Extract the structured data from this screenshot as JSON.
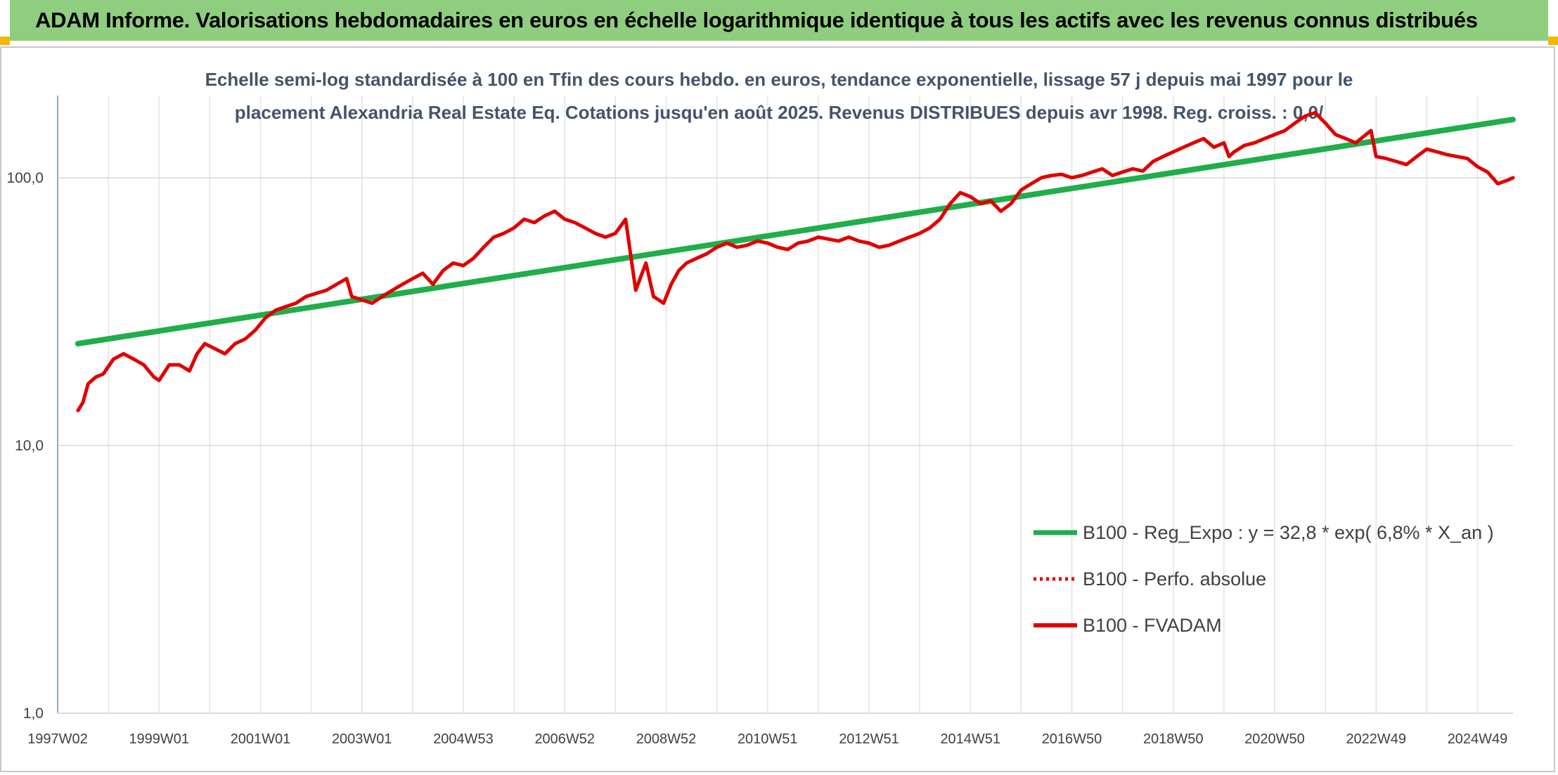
{
  "header": {
    "title": "ADAM Informe. Valorisations hebdomadaires en euros en échelle logarithmique identique à tous les actifs avec les revenus connus distribués"
  },
  "colors": {
    "header_bg": "#8fce7f",
    "accent": "#f2b800",
    "trend": "#1fae4b",
    "perf": "#e00000",
    "grid": "#d9d9d9"
  },
  "chart_data": {
    "type": "line",
    "title_lines": [
      "Echelle semi-log standardisée à 100 en Tfin des cours hebdo. en euros, tendance exponentielle, lissage 57 j depuis mai 1997 pour le",
      "placement Alexandria Real Estate Eq. Cotations jusqu'en août 2025. Revenus DISTRIBUES depuis avr 1998. Reg. croiss. : 0,0/"
    ],
    "y_scale": "log",
    "ylim": [
      1,
      200
    ],
    "y_ticks": [
      {
        "value": 1,
        "label": "1,0"
      },
      {
        "value": 10,
        "label": "10,0"
      },
      {
        "value": 100,
        "label": "100,0"
      }
    ],
    "xlim": [
      1997.0,
      2025.7
    ],
    "x_ticks": [
      {
        "value": 1997.0,
        "label": "1997W02"
      },
      {
        "value": 1999.0,
        "label": "1999W01"
      },
      {
        "value": 2001.0,
        "label": "2001W01"
      },
      {
        "value": 2003.0,
        "label": "2003W01"
      },
      {
        "value": 2005.0,
        "label": "2004W53"
      },
      {
        "value": 2007.0,
        "label": "2006W52"
      },
      {
        "value": 2009.0,
        "label": "2008W52"
      },
      {
        "value": 2011.0,
        "label": "2010W51"
      },
      {
        "value": 2013.0,
        "label": "2012W51"
      },
      {
        "value": 2015.0,
        "label": "2014W51"
      },
      {
        "value": 2017.0,
        "label": "2016W50"
      },
      {
        "value": 2019.0,
        "label": "2018W50"
      },
      {
        "value": 2021.0,
        "label": "2020W50"
      },
      {
        "value": 2023.0,
        "label": "2022W49"
      },
      {
        "value": 2025.0,
        "label": "2024W49"
      }
    ],
    "grid": {
      "vertical_step_years": 1,
      "horizontal_at": [
        1,
        10,
        100
      ]
    },
    "legend_position": "lower-right",
    "series": [
      {
        "name": "B100 - Reg_Expo : y = 32,8 * exp( 6,8% *  X_an )",
        "style": "solid-thick",
        "color": "#1fae4b",
        "x": [
          1997.4,
          2025.7
        ],
        "y": [
          24,
          165
        ]
      },
      {
        "name": "B100 - Perfo. absolue",
        "style": "dotted",
        "color": "#e00000",
        "x": [],
        "y": []
      },
      {
        "name": "B100 - FVADAM",
        "style": "solid",
        "color": "#e00000",
        "x": [
          1997.4,
          1997.5,
          1997.6,
          1997.75,
          1997.9,
          1998.1,
          1998.3,
          1998.5,
          1998.7,
          1998.9,
          1999.0,
          1999.2,
          1999.4,
          1999.6,
          1999.75,
          1999.9,
          2000.1,
          2000.3,
          2000.5,
          2000.7,
          2000.9,
          2001.1,
          2001.3,
          2001.5,
          2001.7,
          2001.9,
          2002.1,
          2002.3,
          2002.5,
          2002.7,
          2002.8,
          2003.0,
          2003.2,
          2003.4,
          2003.6,
          2003.8,
          2004.0,
          2004.2,
          2004.4,
          2004.6,
          2004.8,
          2005.0,
          2005.2,
          2005.4,
          2005.6,
          2005.8,
          2006.0,
          2006.2,
          2006.4,
          2006.6,
          2006.8,
          2007.0,
          2007.2,
          2007.4,
          2007.6,
          2007.8,
          2008.0,
          2008.2,
          2008.4,
          2008.6,
          2008.75,
          2008.85,
          2008.95,
          2009.1,
          2009.25,
          2009.4,
          2009.6,
          2009.8,
          2010.0,
          2010.2,
          2010.4,
          2010.6,
          2010.8,
          2011.0,
          2011.2,
          2011.4,
          2011.6,
          2011.8,
          2012.0,
          2012.2,
          2012.4,
          2012.6,
          2012.8,
          2013.0,
          2013.2,
          2013.4,
          2013.6,
          2013.8,
          2014.0,
          2014.2,
          2014.4,
          2014.6,
          2014.8,
          2015.0,
          2015.2,
          2015.4,
          2015.6,
          2015.8,
          2016.0,
          2016.2,
          2016.4,
          2016.6,
          2016.8,
          2017.0,
          2017.2,
          2017.4,
          2017.6,
          2017.8,
          2018.0,
          2018.2,
          2018.4,
          2018.6,
          2018.8,
          2019.0,
          2019.2,
          2019.4,
          2019.6,
          2019.8,
          2020.0,
          2020.1,
          2020.2,
          2020.4,
          2020.6,
          2020.8,
          2021.0,
          2021.2,
          2021.4,
          2021.6,
          2021.8,
          2022.0,
          2022.2,
          2022.4,
          2022.6,
          2022.8,
          2022.9,
          2023.0,
          2023.2,
          2023.4,
          2023.6,
          2023.8,
          2024.0,
          2024.2,
          2024.4,
          2024.6,
          2024.8,
          2025.0,
          2025.2,
          2025.4,
          2025.6,
          2025.7
        ],
        "y": [
          13.5,
          14.5,
          17,
          18,
          18.5,
          21,
          22,
          21,
          20,
          18,
          17.5,
          20,
          20,
          19,
          22,
          24,
          23,
          22,
          24,
          25,
          27,
          30,
          32,
          33,
          34,
          36,
          37,
          38,
          40,
          42,
          36,
          35,
          34,
          36,
          38,
          40,
          42,
          44,
          40,
          45,
          48,
          47,
          50,
          55,
          60,
          62,
          65,
          70,
          68,
          72,
          75,
          70,
          68,
          65,
          62,
          60,
          62,
          70,
          38,
          48,
          36,
          35,
          34,
          40,
          45,
          48,
          50,
          52,
          55,
          57,
          55,
          56,
          58,
          57,
          55,
          54,
          57,
          58,
          60,
          59,
          58,
          60,
          58,
          57,
          55,
          56,
          58,
          60,
          62,
          65,
          70,
          80,
          88,
          85,
          80,
          82,
          75,
          80,
          90,
          95,
          100,
          102,
          103,
          100,
          102,
          105,
          108,
          102,
          105,
          108,
          106,
          115,
          120,
          125,
          130,
          135,
          140,
          130,
          135,
          120,
          125,
          132,
          135,
          140,
          145,
          150,
          160,
          170,
          175,
          160,
          145,
          140,
          135,
          145,
          150,
          120,
          118,
          115,
          112,
          120,
          128,
          125,
          122,
          120,
          118,
          110,
          105,
          95,
          98,
          100
        ]
      }
    ]
  }
}
